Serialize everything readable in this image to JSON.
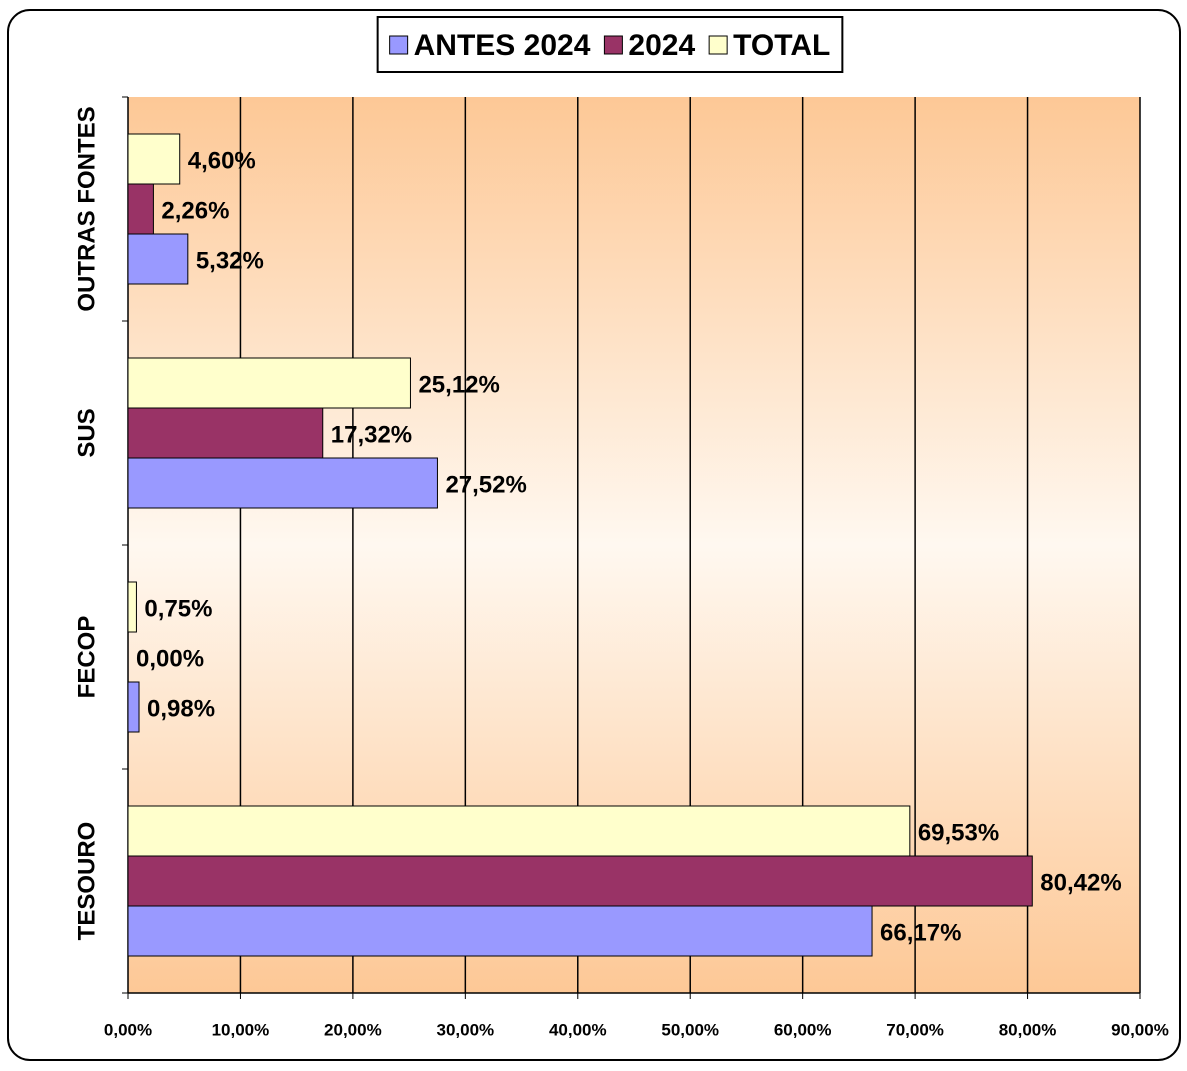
{
  "chart_data": {
    "type": "hbar",
    "categories": [
      "TESOURO",
      "FECOP",
      "SUS",
      "OUTRAS FONTES"
    ],
    "series": [
      {
        "name": "ANTES 2024",
        "color": "#9999ff",
        "values": [
          66.17,
          0.98,
          27.52,
          5.32
        ],
        "value_labels": [
          "66,17%",
          "0,98%",
          "27,52%",
          "5,32%"
        ]
      },
      {
        "name": "2024",
        "color": "#993366",
        "values": [
          80.42,
          0,
          17.32,
          2.26
        ],
        "value_labels": [
          "80,42%",
          "0,00%",
          "17,32%",
          "2,26%"
        ]
      },
      {
        "name": "TOTAL",
        "color": "#ffffcc",
        "values": [
          69.53,
          0.75,
          25.12,
          4.6
        ],
        "value_labels": [
          "69,53%",
          "0,75%",
          "25,12%",
          "4,60%"
        ]
      }
    ],
    "xlim": [
      0,
      90
    ],
    "xticks": [
      {
        "value": 0,
        "label": "0,00%"
      },
      {
        "value": 10,
        "label": "10,00%"
      },
      {
        "value": 20,
        "label": "20,00%"
      },
      {
        "value": 30,
        "label": "30,00%"
      },
      {
        "value": 40,
        "label": "40,00%"
      },
      {
        "value": 50,
        "label": "50,00%"
      },
      {
        "value": 60,
        "label": "60,00%"
      },
      {
        "value": 70,
        "label": "70,00%"
      },
      {
        "value": 80,
        "label": "80,00%"
      },
      {
        "value": 90,
        "label": "90,00%"
      }
    ],
    "grid": true,
    "legend": "top"
  }
}
